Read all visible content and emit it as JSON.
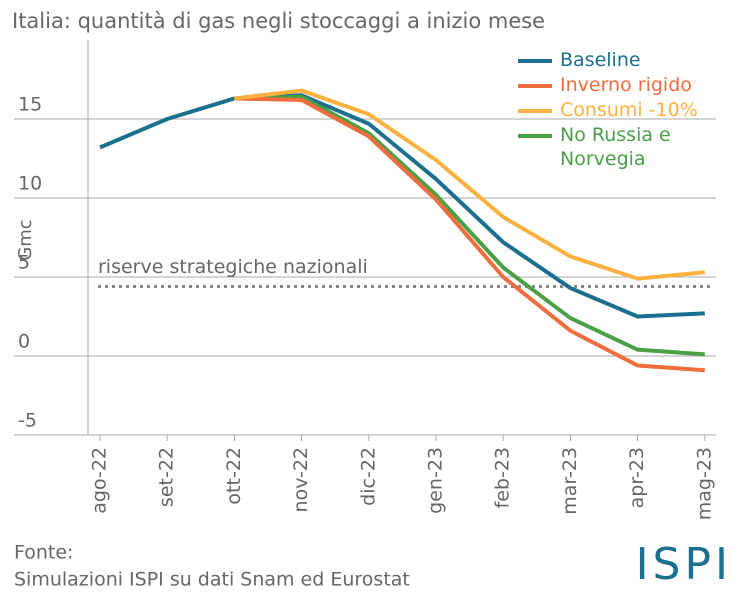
{
  "chart_data": {
    "type": "line",
    "title": "Italia: quantità di gas negli stoccaggi a inizio mese",
    "y_label": "Gmc",
    "categories": [
      "ago-22",
      "set-22",
      "ott-22",
      "nov-22",
      "dic-22",
      "gen-23",
      "feb-23",
      "mar-23",
      "apr-23",
      "mag-23"
    ],
    "series": [
      {
        "name": "Baseline",
        "color": "#1b6f8f",
        "values": [
          13.2,
          15.0,
          16.3,
          16.5,
          14.7,
          11.2,
          7.2,
          4.3,
          2.5,
          2.7
        ]
      },
      {
        "name": "Inverno rigido",
        "color": "#f26d3d",
        "values": [
          null,
          null,
          16.3,
          16.2,
          13.9,
          9.9,
          5.0,
          1.6,
          -0.6,
          -0.9
        ]
      },
      {
        "name": "Consumi -10%",
        "color": "#fbb140",
        "values": [
          null,
          null,
          16.3,
          16.8,
          15.3,
          12.4,
          8.8,
          6.3,
          4.9,
          5.3
        ]
      },
      {
        "name": "No Russia e Norvegia",
        "color": "#4b9f46",
        "values": [
          null,
          null,
          16.3,
          16.4,
          14.1,
          10.2,
          5.6,
          2.4,
          0.4,
          0.1
        ]
      }
    ],
    "reference_line": {
      "value": 4.4,
      "label": "riserve strategiche nazionali"
    },
    "ylim": [
      -5,
      20
    ],
    "yticks": [
      -5,
      0,
      5,
      10,
      15
    ],
    "grid": true,
    "legend": "top-right",
    "source": [
      "Fonte:",
      "Simulazioni ISPI su dati Snam ed Eurostat"
    ],
    "logo": "ISPI"
  }
}
